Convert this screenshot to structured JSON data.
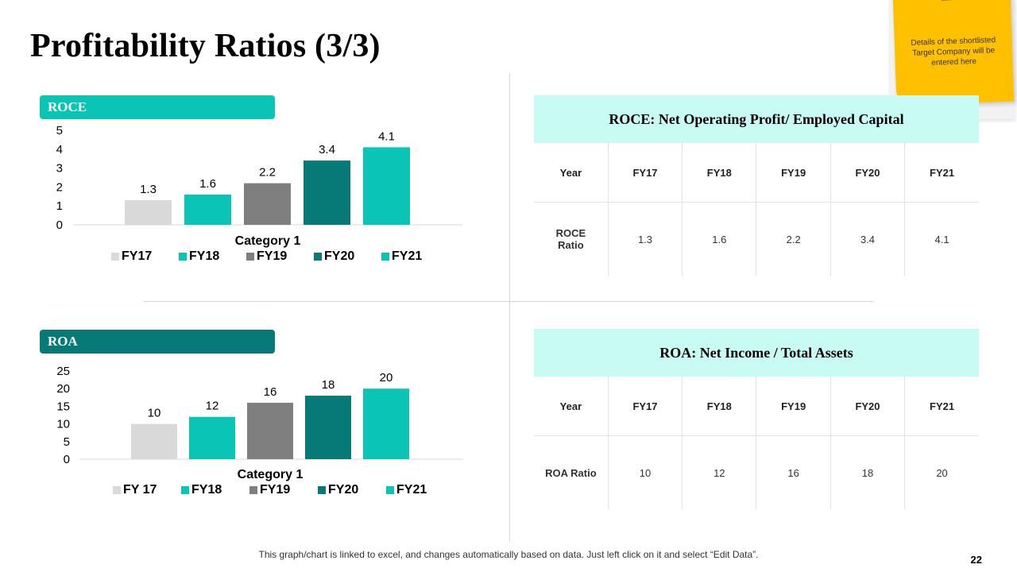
{
  "title": "Profitability Ratios (3/3)",
  "colors": {
    "FY17": "#d9d9d9",
    "FY18": "#0ac4b5",
    "FY19": "#7f7f7f",
    "FY20": "#077a78",
    "FY21": "#0ac4b5",
    "label_roce": "#0ac4b5",
    "label_roa": "#077a78"
  },
  "chart_data": [
    {
      "type": "bar",
      "section_label": "ROCE",
      "xlabel": "Category 1",
      "categories": [
        "Category 1"
      ],
      "series": [
        {
          "name": "FY17",
          "values": [
            1.3
          ]
        },
        {
          "name": "FY18",
          "values": [
            1.6
          ]
        },
        {
          "name": "FY19",
          "values": [
            2.2
          ]
        },
        {
          "name": "FY20",
          "values": [
            3.4
          ]
        },
        {
          "name": "FY21",
          "values": [
            4.1
          ]
        }
      ],
      "ylim": [
        0,
        5
      ],
      "yticks": [
        "0",
        "1",
        "2",
        "3",
        "4",
        "5"
      ]
    },
    {
      "type": "bar",
      "section_label": "ROA",
      "xlabel": "Category 1",
      "categories": [
        "Category 1"
      ],
      "series": [
        {
          "name": "FY 17",
          "values": [
            10
          ]
        },
        {
          "name": "FY18",
          "values": [
            12
          ]
        },
        {
          "name": "FY19",
          "values": [
            16
          ]
        },
        {
          "name": "FY20",
          "values": [
            18
          ]
        },
        {
          "name": "FY21",
          "values": [
            20
          ]
        }
      ],
      "ylim": [
        0,
        25
      ],
      "yticks": [
        "0",
        "5",
        "10",
        "15",
        "20",
        "25"
      ]
    }
  ],
  "roce_table": {
    "heading": "ROCE: Net Operating Profit/ Employed Capital",
    "header_row": [
      "Year",
      "FY17",
      "FY18",
      "FY19",
      "FY20",
      "FY21"
    ],
    "value_row": [
      "ROCE Ratio",
      "1.3",
      "1.6",
      "2.2",
      "3.4",
      "4.1"
    ]
  },
  "roa_table": {
    "heading": "ROA: Net Income / Total Assets",
    "header_row": [
      "Year",
      "FY17",
      "FY18",
      "FY19",
      "FY20",
      "FY21"
    ],
    "value_row": [
      "ROA Ratio",
      "10",
      "12",
      "16",
      "18",
      "20"
    ]
  },
  "sticky_note": "Details of the shortlisted Target Company will be entered here",
  "footer": "This graph/chart is linked to excel, and changes automatically based on data. Just left click on it and select “Edit Data”.",
  "page_number": "22"
}
